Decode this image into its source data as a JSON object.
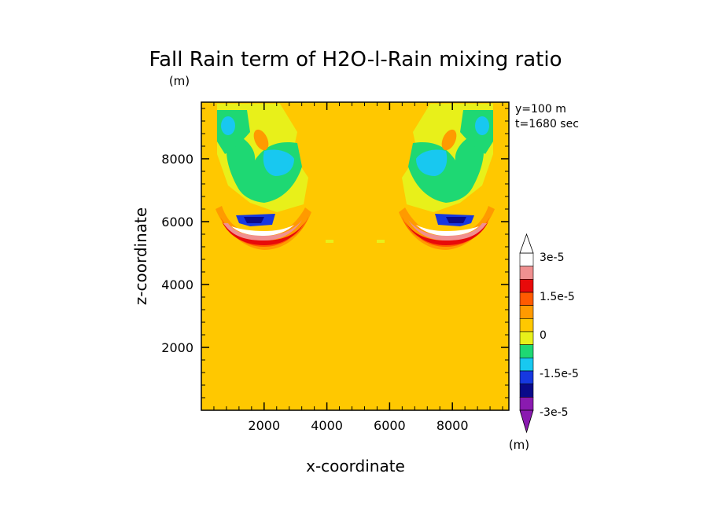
{
  "chart_data": {
    "type": "heatmap",
    "title": "Fall Rain term of H2O-l-Rain mixing ratio",
    "y_unit_label": "(m)",
    "xlabel": "x-coordinate",
    "ylabel": "z-coordinate",
    "annotations": [
      "y=100 m",
      "t=1680 sec"
    ],
    "xlim": [
      0,
      9800
    ],
    "ylim": [
      0,
      9800
    ],
    "x_ticks": [
      2000,
      4000,
      6000,
      8000
    ],
    "y_ticks": [
      2000,
      4000,
      6000,
      8000
    ],
    "x_tick_labels": [
      "2000",
      "4000",
      "6000",
      "8000"
    ],
    "y_tick_labels": [
      "2000",
      "4000",
      "6000",
      "8000"
    ],
    "background_value": 0,
    "colorbar": {
      "unit_label": "(m)",
      "levels": [
        -3e-05,
        -2.5e-05,
        -2e-05,
        -1.5e-05,
        -1e-05,
        -5e-06,
        0,
        5e-06,
        1e-05,
        1.5e-05,
        2e-05,
        2.5e-05,
        3e-05
      ],
      "colors": [
        "#8a1ab0",
        "#0a0a8a",
        "#1638e0",
        "#18c8f0",
        "#1ed873",
        "#e8f01a",
        "#ffc800",
        "#ff9a00",
        "#ff5a00",
        "#e80a0a",
        "#f09090",
        "#ffffff"
      ],
      "tick_labels": [
        "3e-5",
        "1.5e-5",
        "0",
        "-1.5e-5",
        "-3e-5"
      ]
    },
    "features": [
      {
        "label": "upper-left lobe",
        "x": 1900,
        "z": 7900,
        "value": -5e-06
      },
      {
        "label": "upper-left core",
        "x": 2100,
        "z": 8000,
        "value": -1.5e-05
      },
      {
        "label": "left arc",
        "x": 1900,
        "z": 5800,
        "value": 2.7e-05
      },
      {
        "label": "left trough",
        "x": 1800,
        "z": 6200,
        "value": -2.5e-05
      },
      {
        "label": "upper-right lobe",
        "x": 7900,
        "z": 7900,
        "value": -5e-06
      },
      {
        "label": "upper-right core",
        "x": 7700,
        "z": 8000,
        "value": -1.5e-05
      },
      {
        "label": "right arc",
        "x": 7900,
        "z": 5800,
        "value": 2.7e-05
      },
      {
        "label": "right trough",
        "x": 8000,
        "z": 6200,
        "value": -2.5e-05
      }
    ]
  }
}
